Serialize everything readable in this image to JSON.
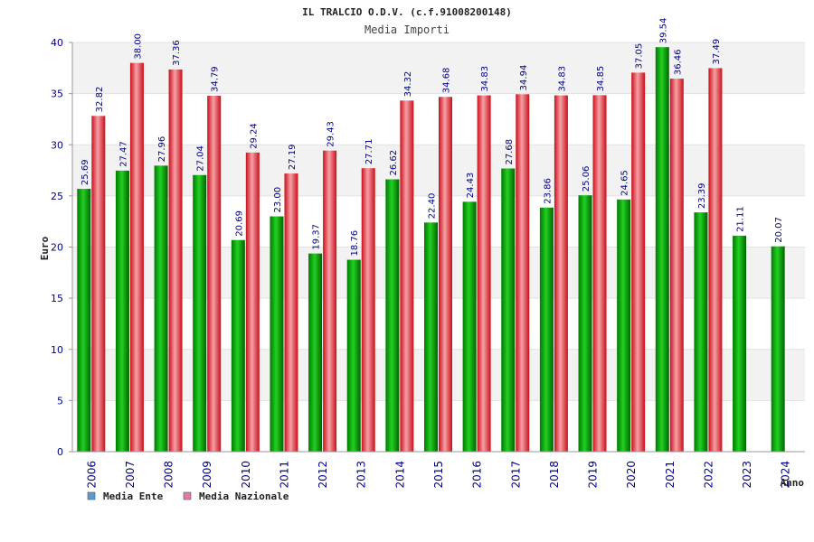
{
  "chart_data": {
    "type": "bar",
    "title": "IL TRALCIO O.D.V. (c.f.91008200148)",
    "subtitle": "Media Importi",
    "xlabel": "Anno",
    "ylabel": "Euro",
    "ylim": [
      0,
      40
    ],
    "yticks": [
      0,
      5,
      10,
      15,
      20,
      25,
      30,
      35,
      40
    ],
    "grid": true,
    "legend_position": "bottom-left",
    "categories": [
      "2006",
      "2007",
      "2008",
      "2009",
      "2010",
      "2011",
      "2012",
      "2013",
      "2014",
      "2015",
      "2016",
      "2017",
      "2018",
      "2019",
      "2020",
      "2021",
      "2022",
      "2023",
      "2024"
    ],
    "series": [
      {
        "name": "Media Ente",
        "color": "#00aa00",
        "legend_color": "#5b9bd5",
        "values": [
          25.69,
          27.47,
          27.96,
          27.04,
          20.69,
          23.0,
          19.37,
          18.76,
          26.62,
          22.4,
          24.43,
          27.68,
          23.86,
          25.06,
          24.65,
          39.54,
          23.39,
          21.11,
          20.07
        ]
      },
      {
        "name": "Media Nazionale",
        "color": "#e8202a",
        "legend_color": "#e07aa8",
        "values": [
          32.82,
          38.0,
          37.36,
          34.79,
          29.24,
          27.19,
          29.43,
          27.71,
          34.32,
          34.68,
          34.83,
          34.94,
          34.83,
          34.85,
          37.05,
          36.46,
          37.49,
          null,
          null
        ]
      }
    ]
  }
}
